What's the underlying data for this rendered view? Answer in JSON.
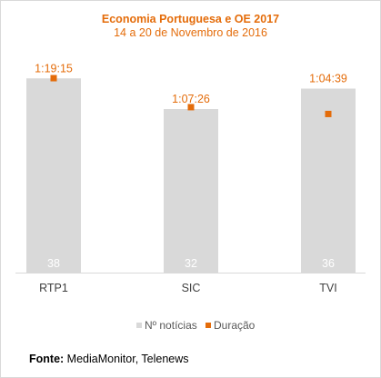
{
  "chart_data": {
    "type": "bar",
    "title": "Economia Portuguesa e OE 2017",
    "subtitle": "14 a 20 de Novembro de 2016",
    "categories": [
      "RTP1",
      "SIC",
      "TVI"
    ],
    "series": [
      {
        "name": "Nº notícias",
        "type": "bar",
        "values": [
          38,
          32,
          36
        ],
        "color": "#d9d9d9",
        "axis": "left"
      },
      {
        "name": "Duração",
        "type": "scatter",
        "values": [
          "1:19:15",
          "1:07:26",
          "1:04:39"
        ],
        "seconds": [
          4755,
          4046,
          3879
        ],
        "color": "#e46c0a",
        "axis": "right"
      }
    ],
    "legend": "bottom",
    "grid": false
  },
  "source": {
    "label": "Fonte:",
    "text": "MediaMonitor, Telenews"
  }
}
